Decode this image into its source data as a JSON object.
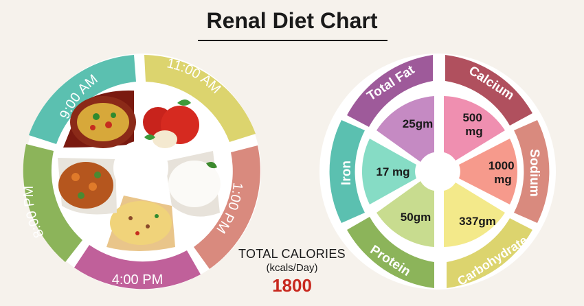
{
  "title": "Renal Diet Chart",
  "colors": {
    "teal": "#5bc0b0",
    "yellow": "#dcd46e",
    "salmon": "#d98a7e",
    "magenta": "#c0609a",
    "green": "#8cb45a",
    "purple": "#9e5a9a",
    "rose": "#b0505e",
    "red_accent": "#c8281e"
  },
  "meal_wheel": {
    "times": [
      "9:00 AM",
      "11:00 AM",
      "1:00 PM",
      "4:00 PM",
      "8:00 PM"
    ],
    "foods": [
      {
        "name": "vegetable-biryani-plate",
        "icon": "rice-plate-icon"
      },
      {
        "name": "red-apples",
        "icon": "apple-icon"
      },
      {
        "name": "white-rice-bowl",
        "icon": "rice-bowl-icon"
      },
      {
        "name": "peanut-poha",
        "icon": "poha-icon"
      },
      {
        "name": "paneer-vegetable-curry",
        "icon": "curry-icon"
      }
    ]
  },
  "total_calories": {
    "label": "TOTAL CALORIES",
    "unit": "(kcals/Day)",
    "value": "1800"
  },
  "nutrient_wheel": {
    "nutrients": [
      {
        "name": "Total Fat",
        "value": "25gm"
      },
      {
        "name": "Calcium",
        "value": "500\nmg"
      },
      {
        "name": "Sodium",
        "value": "1000\nmg"
      },
      {
        "name": "Carbohydrate",
        "value": "337gm"
      },
      {
        "name": "Protein",
        "value": "50gm"
      },
      {
        "name": "Iron",
        "value": "17 mg"
      }
    ]
  }
}
